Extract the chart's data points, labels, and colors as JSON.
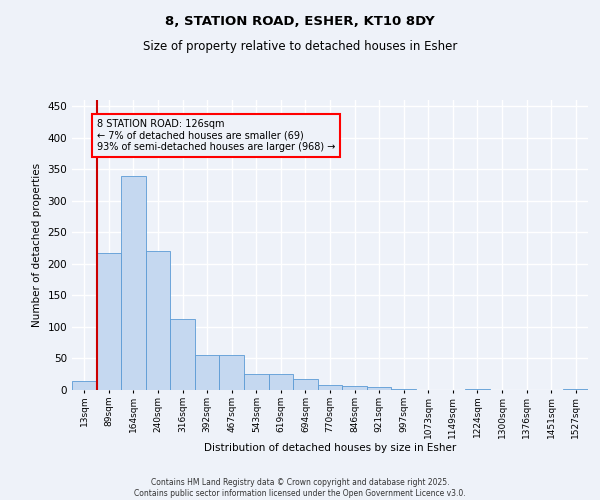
{
  "title1": "8, STATION ROAD, ESHER, KT10 8DY",
  "title2": "Size of property relative to detached houses in Esher",
  "xlabel": "Distribution of detached houses by size in Esher",
  "ylabel": "Number of detached properties",
  "categories": [
    "13sqm",
    "89sqm",
    "164sqm",
    "240sqm",
    "316sqm",
    "392sqm",
    "467sqm",
    "543sqm",
    "619sqm",
    "694sqm",
    "770sqm",
    "846sqm",
    "921sqm",
    "997sqm",
    "1073sqm",
    "1149sqm",
    "1224sqm",
    "1300sqm",
    "1376sqm",
    "1451sqm",
    "1527sqm"
  ],
  "values": [
    15,
    218,
    340,
    220,
    112,
    55,
    55,
    25,
    25,
    17,
    8,
    6,
    5,
    1,
    0,
    0,
    1,
    0,
    0,
    0,
    1
  ],
  "bar_color": "#c5d8f0",
  "bar_edge_color": "#5b9bd5",
  "vline_color": "#cc0000",
  "vline_x": 0.5,
  "annotation_text": "8 STATION ROAD: 126sqm\n← 7% of detached houses are smaller (69)\n93% of semi-detached houses are larger (968) →",
  "ylim": [
    0,
    460
  ],
  "yticks": [
    0,
    50,
    100,
    150,
    200,
    250,
    300,
    350,
    400,
    450
  ],
  "bg_color": "#eef2f9",
  "grid_color": "#ffffff",
  "footer1": "Contains HM Land Registry data © Crown copyright and database right 2025.",
  "footer2": "Contains public sector information licensed under the Open Government Licence v3.0."
}
